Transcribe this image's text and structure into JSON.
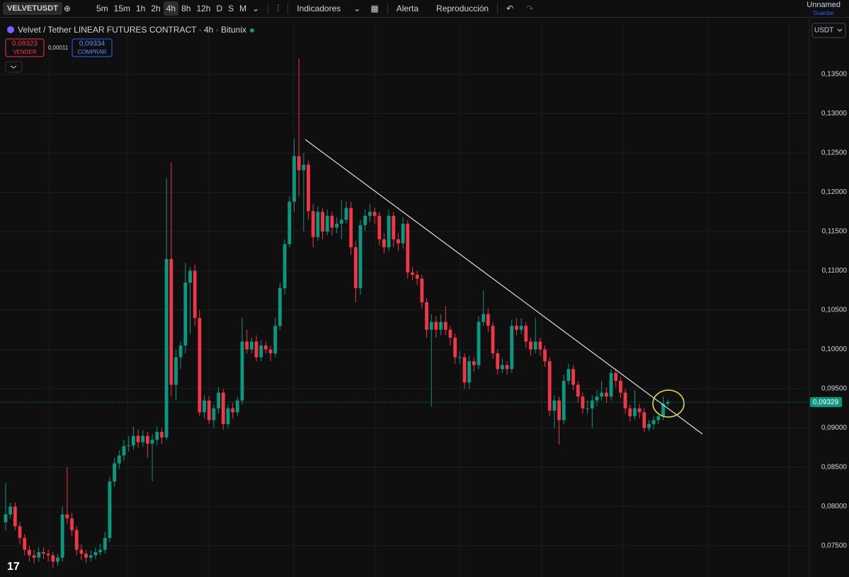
{
  "toolbar": {
    "symbol": "VELVETUSDT",
    "intervals": [
      "5m",
      "15m",
      "1h",
      "2h",
      "4h",
      "8h",
      "12h",
      "D",
      "S",
      "M"
    ],
    "indicators": "Indicadores",
    "alert": "Alerta",
    "replay": "Reproducción",
    "layout_name": "Unnamed",
    "save": "Guardar"
  },
  "header": {
    "title": "Velvet / Tether LINEAR FUTURES CONTRACT · 4h · Bitunix",
    "sell_price": "0,09323",
    "sell_label": "VENDER",
    "spread": "0,00011",
    "buy_price": "0,09334",
    "buy_label": "COMPRAR",
    "currency": "USDT"
  },
  "chart_data": {
    "type": "candlestick",
    "up_color": "#089981",
    "down_color": "#f23645",
    "ylim": [
      0.07104,
      0.14176
    ],
    "yticks": [
      {
        "value": 0.075,
        "label": "0,07500"
      },
      {
        "value": 0.08,
        "label": "0,08000"
      },
      {
        "value": 0.085,
        "label": "0,08500"
      },
      {
        "value": 0.09,
        "label": "0,09000"
      },
      {
        "value": 0.095,
        "label": "0,09500"
      },
      {
        "value": 0.1,
        "label": "0,10000"
      },
      {
        "value": 0.105,
        "label": "0,10500"
      },
      {
        "value": 0.11,
        "label": "0,11000"
      },
      {
        "value": 0.115,
        "label": "0,11500"
      },
      {
        "value": 0.12,
        "label": "0,12000"
      },
      {
        "value": 0.125,
        "label": "0,12500"
      },
      {
        "value": 0.13,
        "label": "0,13000"
      },
      {
        "value": 0.135,
        "label": "0,13500"
      }
    ],
    "last_price": {
      "value": 0.09329,
      "label": "0,09329"
    },
    "open": [
      0.078,
      0.079,
      0.08,
      0.0775,
      0.076,
      0.0745,
      0.0738,
      0.0735,
      0.0742,
      0.074,
      0.0738,
      0.073,
      0.0735,
      0.079,
      0.0785,
      0.077,
      0.0745,
      0.074,
      0.0735,
      0.0738,
      0.0742,
      0.0745,
      0.076,
      0.0832,
      0.0855,
      0.0865,
      0.0877,
      0.0878,
      0.089,
      0.0882,
      0.089,
      0.088,
      0.0885,
      0.0895,
      0.0888,
      0.1115,
      0.0955,
      0.099,
      0.1005,
      0.1085,
      0.11,
      0.104,
      0.092,
      0.0935,
      0.091,
      0.0925,
      0.0945,
      0.0905,
      0.0925,
      0.092,
      0.0935,
      0.101,
      0.1,
      0.101,
      0.099,
      0.1005,
      0.1,
      0.0995,
      0.103,
      0.1078,
      0.1134,
      0.1188,
      0.1246,
      0.1228,
      0.1235,
      0.1176,
      0.1143,
      0.1175,
      0.115,
      0.117,
      0.1155,
      0.116,
      0.1165,
      0.118,
      0.113,
      0.1078,
      0.1158,
      0.117,
      0.1175,
      0.117,
      0.114,
      0.113,
      0.117,
      0.114,
      0.1135,
      0.116,
      0.1098,
      0.1095,
      0.109,
      0.106,
      0.1025,
      0.1035,
      0.1025,
      0.1035,
      0.1025,
      0.1015,
      0.099,
      0.099,
      0.0958,
      0.0985,
      0.098,
      0.1035,
      0.1045,
      0.103,
      0.0995,
      0.0975,
      0.098,
      0.0975,
      0.103,
      0.1025,
      0.103,
      0.101,
      0.1,
      0.101,
      0.1,
      0.0985,
      0.0922,
      0.0935,
      0.091,
      0.096,
      0.0975,
      0.0955,
      0.094,
      0.0925,
      0.0925,
      0.0935,
      0.094,
      0.0945,
      0.094,
      0.097,
      0.096,
      0.0945,
      0.0925,
      0.0915,
      0.0925,
      0.092,
      0.09,
      0.0905,
      0.091,
      0.0915,
      0.0931
    ],
    "high": [
      0.083,
      0.0805,
      0.0805,
      0.078,
      0.0765,
      0.075,
      0.0745,
      0.0748,
      0.0748,
      0.0745,
      0.0742,
      0.074,
      0.08,
      0.085,
      0.0792,
      0.0775,
      0.0752,
      0.0745,
      0.0745,
      0.0748,
      0.0752,
      0.0768,
      0.0838,
      0.0862,
      0.0872,
      0.0885,
      0.089,
      0.0902,
      0.0898,
      0.0897,
      0.0895,
      0.0892,
      0.0902,
      0.09,
      0.1218,
      0.1238,
      0.1,
      0.101,
      0.111,
      0.1105,
      0.1108,
      0.105,
      0.0942,
      0.094,
      0.093,
      0.0952,
      0.095,
      0.093,
      0.0932,
      0.094,
      0.104,
      0.1025,
      0.1015,
      0.1018,
      0.1012,
      0.101,
      0.1005,
      0.104,
      0.1085,
      0.114,
      0.1195,
      0.1268,
      0.137,
      0.125,
      0.124,
      0.1185,
      0.1182,
      0.118,
      0.1178,
      0.1175,
      0.1168,
      0.119,
      0.1188,
      0.1188,
      0.1138,
      0.1165,
      0.1178,
      0.1185,
      0.118,
      0.1175,
      0.1148,
      0.1178,
      0.1175,
      0.1148,
      0.1168,
      0.1165,
      0.1105,
      0.11,
      0.1095,
      0.1065,
      0.1045,
      0.1042,
      0.1045,
      0.1055,
      0.103,
      0.102,
      0.0998,
      0.0995,
      0.0992,
      0.099,
      0.1042,
      0.1075,
      0.1052,
      0.1035,
      0.1,
      0.0988,
      0.0985,
      0.1038,
      0.104,
      0.104,
      0.1035,
      0.1015,
      0.104,
      0.1015,
      0.1005,
      0.099,
      0.0942,
      0.094,
      0.0968,
      0.0982,
      0.098,
      0.096,
      0.0945,
      0.0935,
      0.0942,
      0.0948,
      0.096,
      0.0952,
      0.0975,
      0.0975,
      0.0965,
      0.095,
      0.093,
      0.0948,
      0.093,
      0.0925,
      0.091,
      0.0915,
      0.092,
      0.094,
      0.0936
    ],
    "low": [
      0.077,
      0.0785,
      0.077,
      0.0752,
      0.0738,
      0.073,
      0.0728,
      0.073,
      0.0733,
      0.073,
      0.0722,
      0.0725,
      0.073,
      0.0778,
      0.0762,
      0.0738,
      0.0732,
      0.0728,
      0.073,
      0.0733,
      0.0738,
      0.074,
      0.0755,
      0.0825,
      0.0848,
      0.0858,
      0.087,
      0.0872,
      0.0875,
      0.0876,
      0.0862,
      0.0832,
      0.0878,
      0.088,
      0.0885,
      0.094,
      0.0935,
      0.0975,
      0.0995,
      0.102,
      0.103,
      0.0915,
      0.0912,
      0.0905,
      0.09,
      0.0918,
      0.0898,
      0.09,
      0.0912,
      0.0915,
      0.093,
      0.0995,
      0.0995,
      0.0985,
      0.0985,
      0.0995,
      0.0985,
      0.099,
      0.1025,
      0.107,
      0.113,
      0.1175,
      0.1195,
      0.115,
      0.1165,
      0.113,
      0.1138,
      0.114,
      0.1145,
      0.1145,
      0.1148,
      0.114,
      0.116,
      0.112,
      0.106,
      0.107,
      0.115,
      0.1162,
      0.116,
      0.1132,
      0.1122,
      0.1125,
      0.113,
      0.1125,
      0.1128,
      0.109,
      0.1088,
      0.1082,
      0.1052,
      0.1015,
      0.0927,
      0.1015,
      0.1018,
      0.1018,
      0.1005,
      0.0982,
      0.0982,
      0.095,
      0.095,
      0.0972,
      0.0975,
      0.103,
      0.1022,
      0.0988,
      0.0968,
      0.097,
      0.0968,
      0.097,
      0.1018,
      0.102,
      0.1002,
      0.0992,
      0.0995,
      0.0992,
      0.0978,
      0.0915,
      0.09,
      0.0879,
      0.0905,
      0.0955,
      0.0948,
      0.0932,
      0.0918,
      0.0918,
      0.09,
      0.0928,
      0.0935,
      0.0932,
      0.0935,
      0.0952,
      0.0938,
      0.0918,
      0.0908,
      0.091,
      0.0912,
      0.0895,
      0.0896,
      0.0898,
      0.0905,
      0.091,
      0.0928
    ],
    "close": [
      0.079,
      0.08,
      0.0775,
      0.076,
      0.0745,
      0.0738,
      0.0735,
      0.0742,
      0.074,
      0.0738,
      0.073,
      0.0735,
      0.079,
      0.0785,
      0.077,
      0.0745,
      0.074,
      0.0735,
      0.0738,
      0.0742,
      0.0745,
      0.076,
      0.0832,
      0.0855,
      0.0865,
      0.0877,
      0.0878,
      0.089,
      0.0882,
      0.089,
      0.088,
      0.0885,
      0.0895,
      0.0888,
      0.1115,
      0.0955,
      0.099,
      0.1005,
      0.1085,
      0.11,
      0.104,
      0.092,
      0.0935,
      0.091,
      0.0925,
      0.0945,
      0.0905,
      0.0925,
      0.092,
      0.0935,
      0.101,
      0.1,
      0.101,
      0.099,
      0.1005,
      0.1,
      0.0995,
      0.103,
      0.1078,
      0.1134,
      0.1188,
      0.1246,
      0.1228,
      0.1235,
      0.1176,
      0.1143,
      0.1175,
      0.115,
      0.117,
      0.1155,
      0.116,
      0.1165,
      0.118,
      0.113,
      0.1078,
      0.1158,
      0.117,
      0.1175,
      0.117,
      0.114,
      0.113,
      0.117,
      0.114,
      0.1135,
      0.116,
      0.1098,
      0.1095,
      0.109,
      0.106,
      0.1025,
      0.1035,
      0.1025,
      0.1035,
      0.1025,
      0.1015,
      0.099,
      0.099,
      0.0958,
      0.0985,
      0.098,
      0.1035,
      0.1045,
      0.103,
      0.0995,
      0.0975,
      0.098,
      0.0975,
      0.103,
      0.1025,
      0.103,
      0.101,
      0.1,
      0.101,
      0.1,
      0.0985,
      0.0922,
      0.0935,
      0.091,
      0.096,
      0.0975,
      0.0955,
      0.094,
      0.0925,
      0.0925,
      0.0935,
      0.094,
      0.0945,
      0.094,
      0.097,
      0.096,
      0.0945,
      0.0925,
      0.0915,
      0.0925,
      0.092,
      0.09,
      0.0905,
      0.091,
      0.0915,
      0.0931,
      0.0933
    ]
  }
}
